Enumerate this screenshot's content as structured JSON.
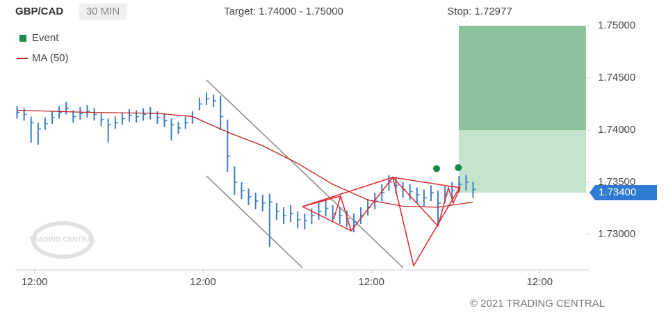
{
  "chart_data": {
    "type": "ohlc",
    "symbol": "GBP/CAD",
    "timeframe": "30 MIN",
    "target": "Target: 1.74000 - 1.75000",
    "stop": "Stop: 1.72977",
    "copyright": "© 2021 TRADING CENTRAL",
    "watermark": "TRADING CENTRAL",
    "ylim": [
      1.7266,
      1.7512
    ],
    "yticks": [
      {
        "value": 1.75,
        "label": "1.75000"
      },
      {
        "value": 1.745,
        "label": "1.74500"
      },
      {
        "value": 1.74,
        "label": "1.74000"
      },
      {
        "value": 1.735,
        "label": "1.73500"
      },
      {
        "value": 1.73,
        "label": "1.73000"
      }
    ],
    "xlim": [
      -0.5,
      163
    ],
    "xticks": [
      {
        "value": 5,
        "label": "12:00"
      },
      {
        "value": 53,
        "label": "12:00"
      },
      {
        "value": 101,
        "label": "12:00"
      },
      {
        "value": 149,
        "label": "12:00"
      }
    ],
    "target_zone": [
      1.74,
      1.75
    ],
    "current_price": {
      "value": 1.734,
      "label": "1.73400"
    },
    "bars": {
      "color": "#3b7dc4",
      "x": [
        0,
        2,
        4,
        6,
        8,
        10,
        12,
        14,
        16,
        18,
        20,
        22,
        24,
        26,
        28,
        30,
        32,
        34,
        36,
        38,
        40,
        42,
        44,
        46,
        48,
        50,
        52,
        54,
        56,
        58,
        60,
        62,
        64,
        66,
        68,
        70,
        72,
        74,
        76,
        78,
        80,
        82,
        84,
        86,
        88,
        90,
        92,
        94,
        96,
        98,
        100,
        102,
        104,
        106,
        108,
        110,
        112,
        114,
        116,
        118,
        120,
        122,
        124,
        126,
        128,
        130
      ],
      "high": [
        1.7423,
        1.7421,
        1.7413,
        1.7407,
        1.7412,
        1.7418,
        1.7423,
        1.7427,
        1.7419,
        1.7422,
        1.7424,
        1.7421,
        1.7416,
        1.7411,
        1.7413,
        1.7417,
        1.742,
        1.7419,
        1.7421,
        1.7422,
        1.7418,
        1.7415,
        1.7411,
        1.7408,
        1.7413,
        1.7418,
        1.7431,
        1.7436,
        1.7434,
        1.7433,
        1.741,
        1.7365,
        1.735,
        1.7344,
        1.734,
        1.7338,
        1.7339,
        1.733,
        1.7326,
        1.7328,
        1.7322,
        1.732,
        1.7325,
        1.733,
        1.7333,
        1.7328,
        1.7326,
        1.7323,
        1.732,
        1.7326,
        1.7334,
        1.734,
        1.7348,
        1.7357,
        1.7355,
        1.735,
        1.7348,
        1.7345,
        1.7343,
        1.7347,
        1.7342,
        1.7346,
        1.735,
        1.7356,
        1.7357,
        1.735
      ],
      "low": [
        1.7411,
        1.7409,
        1.7388,
        1.7386,
        1.74,
        1.7406,
        1.7411,
        1.7415,
        1.7407,
        1.741,
        1.7412,
        1.7409,
        1.7404,
        1.7388,
        1.7401,
        1.7405,
        1.7408,
        1.7407,
        1.7409,
        1.741,
        1.7406,
        1.7403,
        1.739,
        1.7396,
        1.7401,
        1.7406,
        1.7419,
        1.7424,
        1.7422,
        1.74,
        1.736,
        1.7338,
        1.7334,
        1.7328,
        1.7324,
        1.7322,
        1.7288,
        1.7314,
        1.731,
        1.7312,
        1.7306,
        1.7305,
        1.731,
        1.7314,
        1.7317,
        1.7312,
        1.731,
        1.7307,
        1.7302,
        1.731,
        1.7318,
        1.7324,
        1.7332,
        1.7342,
        1.7339,
        1.7335,
        1.7333,
        1.733,
        1.7327,
        1.7332,
        1.731,
        1.733,
        1.7334,
        1.734,
        1.7342,
        1.7335
      ],
      "close": [
        1.7417,
        1.7415,
        1.7407,
        1.7401,
        1.7406,
        1.7412,
        1.7417,
        1.7421,
        1.7413,
        1.7416,
        1.7418,
        1.7415,
        1.741,
        1.7405,
        1.7407,
        1.7411,
        1.7414,
        1.7413,
        1.7415,
        1.7416,
        1.7412,
        1.7409,
        1.7405,
        1.7402,
        1.7407,
        1.7412,
        1.7425,
        1.743,
        1.7428,
        1.7413,
        1.7375,
        1.735,
        1.7342,
        1.7336,
        1.7332,
        1.733,
        1.7331,
        1.7322,
        1.7318,
        1.732,
        1.7314,
        1.7313,
        1.7318,
        1.7322,
        1.7325,
        1.732,
        1.7318,
        1.7315,
        1.7312,
        1.7318,
        1.7326,
        1.7332,
        1.734,
        1.735,
        1.7347,
        1.7343,
        1.7341,
        1.7338,
        1.7335,
        1.734,
        1.733,
        1.7338,
        1.7342,
        1.7348,
        1.735,
        1.7343
      ]
    },
    "series": [
      {
        "name": "Event",
        "color": "#1a8a44",
        "x": [
          119.6,
          125.8
        ],
        "values": [
          1.7363,
          1.7364
        ]
      },
      {
        "name": "MA (50)",
        "color": "#c0211f",
        "x": [
          0,
          20,
          40,
          50,
          60,
          70,
          80,
          90,
          100,
          110,
          120,
          130
        ],
        "values": [
          1.7419,
          1.7417,
          1.7416,
          1.7413,
          1.7398,
          1.7385,
          1.7368,
          1.7348,
          1.7333,
          1.7327,
          1.7326,
          1.7331
        ]
      }
    ]
  }
}
